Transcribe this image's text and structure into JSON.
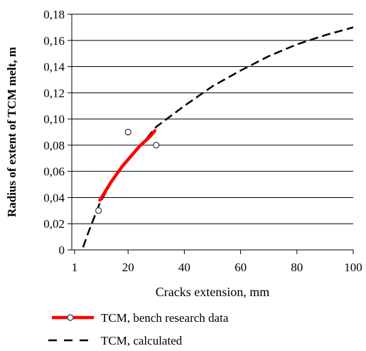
{
  "chart_data": {
    "type": "line",
    "xlabel": "Cracks extension,  mm",
    "ylabel": "Radius of extent of TCM melt, m",
    "xlim": [
      0,
      100
    ],
    "ylim": [
      0,
      0.18
    ],
    "x_ticks": [
      {
        "value": 1,
        "label": "1"
      },
      {
        "value": 20,
        "label": "20"
      },
      {
        "value": 40,
        "label": "40"
      },
      {
        "value": 60,
        "label": "60"
      },
      {
        "value": 80,
        "label": "80"
      },
      {
        "value": 100,
        "label": "100"
      }
    ],
    "y_ticks": [
      {
        "value": 0,
        "label": "0"
      },
      {
        "value": 0.02,
        "label": "0,02"
      },
      {
        "value": 0.04,
        "label": "0,04"
      },
      {
        "value": 0.06,
        "label": "0,06"
      },
      {
        "value": 0.08,
        "label": "0,08"
      },
      {
        "value": 0.1,
        "label": "0,10"
      },
      {
        "value": 0.12,
        "label": "0,12"
      },
      {
        "value": 0.14,
        "label": "0,14"
      },
      {
        "value": 0.16,
        "label": "0,16"
      },
      {
        "value": 0.18,
        "label": "0,18"
      }
    ],
    "grid": "horizontal",
    "legend_position": "bottom-left",
    "series": [
      {
        "name": "TCM, bench research data",
        "color": "#ff0000",
        "style": "solid",
        "marker": "hollow-circle",
        "curve": [
          {
            "x": 10,
            "y": 0.038
          },
          {
            "x": 12,
            "y": 0.045
          },
          {
            "x": 14,
            "y": 0.052
          },
          {
            "x": 16,
            "y": 0.058
          },
          {
            "x": 18,
            "y": 0.064
          },
          {
            "x": 20,
            "y": 0.069
          },
          {
            "x": 22,
            "y": 0.074
          },
          {
            "x": 24,
            "y": 0.079
          },
          {
            "x": 26,
            "y": 0.083
          },
          {
            "x": 28,
            "y": 0.087
          },
          {
            "x": 29.5,
            "y": 0.091
          }
        ],
        "points": [
          {
            "x": 9.5,
            "y": 0.03
          },
          {
            "x": 20,
            "y": 0.09
          },
          {
            "x": 30,
            "y": 0.08
          }
        ]
      },
      {
        "name": "TCM, calculated",
        "color": "#000000",
        "style": "dashed",
        "curve": [
          {
            "x": 4,
            "y": 0.002
          },
          {
            "x": 6,
            "y": 0.014
          },
          {
            "x": 8,
            "y": 0.025
          },
          {
            "x": 10,
            "y": 0.036
          },
          {
            "x": 15,
            "y": 0.055
          },
          {
            "x": 20,
            "y": 0.07
          },
          {
            "x": 25,
            "y": 0.081
          },
          {
            "x": 30,
            "y": 0.094
          },
          {
            "x": 35,
            "y": 0.102
          },
          {
            "x": 40,
            "y": 0.11
          },
          {
            "x": 50,
            "y": 0.125
          },
          {
            "x": 60,
            "y": 0.137
          },
          {
            "x": 70,
            "y": 0.148
          },
          {
            "x": 80,
            "y": 0.157
          },
          {
            "x": 90,
            "y": 0.164
          },
          {
            "x": 100,
            "y": 0.17
          }
        ]
      }
    ]
  }
}
